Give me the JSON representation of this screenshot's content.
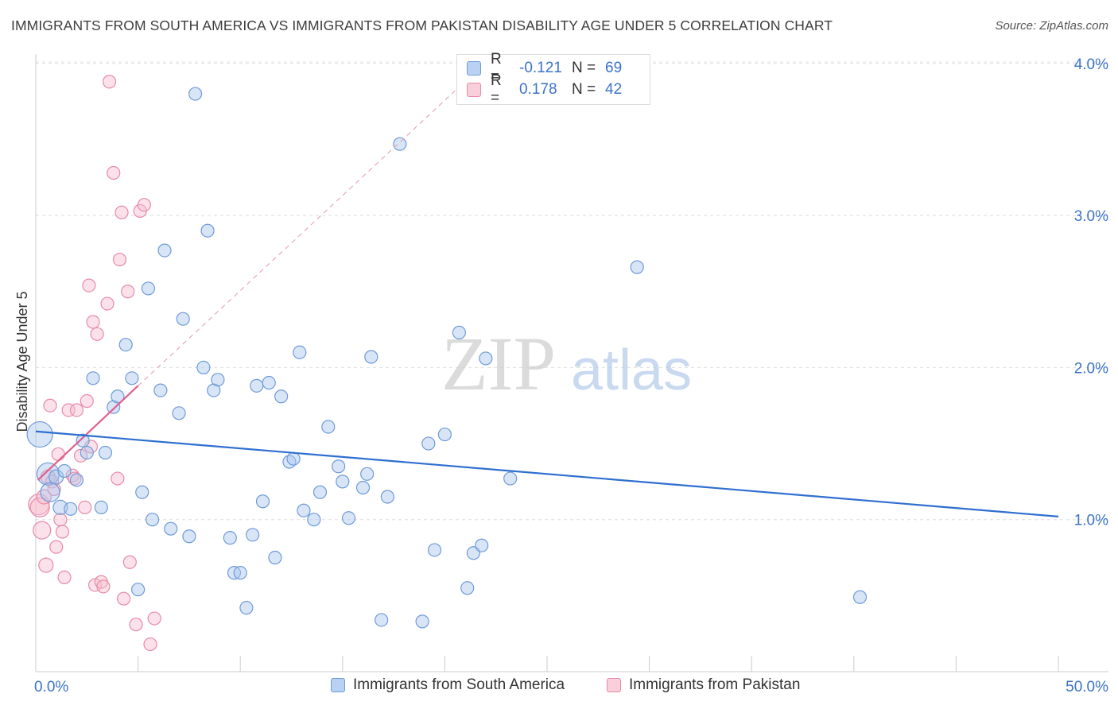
{
  "header": {
    "title": "IMMIGRANTS FROM SOUTH AMERICA VS IMMIGRANTS FROM PAKISTAN DISABILITY AGE UNDER 5 CORRELATION CHART",
    "source": "Source: ZipAtlas.com"
  },
  "watermark": {
    "zip": "ZIP",
    "atlas": "atlas"
  },
  "legend": {
    "r_label": "R =",
    "n_label": "N =",
    "rows": [
      {
        "r": "-0.121",
        "n": "69"
      },
      {
        "r": "0.178",
        "n": "42"
      }
    ]
  },
  "bottom_legend": {
    "series_a": "Immigrants from South America",
    "series_b": "Immigrants from Pakistan"
  },
  "colors": {
    "blue_fill": "#a9c6ee",
    "blue_stroke": "#6f9bd8",
    "blue_line": "#2f6fd0",
    "pink_fill": "#f6bfd0",
    "pink_stroke": "#e88aa8",
    "pink_line": "#e0608e",
    "axis_text": "#3b73c9"
  },
  "chart_data": {
    "type": "scatter",
    "title": "IMMIGRANTS FROM SOUTH AMERICA VS IMMIGRANTS FROM PAKISTAN DISABILITY AGE UNDER 5 CORRELATION CHART",
    "xlabel": "",
    "ylabel": "Disability Age Under 5",
    "xlim": [
      0,
      50
    ],
    "ylim": [
      0,
      4.2
    ],
    "x_tick_labels": [
      "0.0%",
      "50.0%"
    ],
    "y_ticks": [
      1.0,
      2.0,
      3.0,
      4.0
    ],
    "y_tick_labels": [
      "1.0%",
      "2.0%",
      "3.0%",
      "4.0%"
    ],
    "grid": true,
    "legend_position": "top-center",
    "series": [
      {
        "name": "Immigrants from South America",
        "R": -0.121,
        "N": 69,
        "trend": {
          "x": [
            0,
            50
          ],
          "y": [
            1.58,
            1.02
          ]
        },
        "points": [
          [
            0.2,
            1.56,
            16
          ],
          [
            0.6,
            1.3,
            14
          ],
          [
            0.7,
            1.18,
            12
          ],
          [
            1.0,
            1.28,
            9
          ],
          [
            1.2,
            1.08,
            9
          ],
          [
            1.4,
            1.32,
            8
          ],
          [
            1.7,
            1.07,
            8
          ],
          [
            2.0,
            1.26,
            8
          ],
          [
            2.3,
            1.52,
            8
          ],
          [
            2.5,
            1.44,
            8
          ],
          [
            2.8,
            1.93,
            8
          ],
          [
            3.2,
            1.08,
            8
          ],
          [
            3.4,
            1.44,
            8
          ],
          [
            3.8,
            1.74,
            8
          ],
          [
            4.0,
            1.81,
            8
          ],
          [
            4.4,
            2.15,
            8
          ],
          [
            4.7,
            1.93,
            8
          ],
          [
            5.0,
            0.54,
            8
          ],
          [
            5.2,
            1.18,
            8
          ],
          [
            5.5,
            2.52,
            8
          ],
          [
            5.7,
            1.0,
            8
          ],
          [
            6.1,
            1.85,
            8
          ],
          [
            6.3,
            2.77,
            8
          ],
          [
            6.6,
            0.94,
            8
          ],
          [
            7.0,
            1.7,
            8
          ],
          [
            7.2,
            2.32,
            8
          ],
          [
            7.5,
            0.89,
            8
          ],
          [
            7.8,
            3.8,
            8
          ],
          [
            8.2,
            2.0,
            8
          ],
          [
            8.4,
            2.9,
            8
          ],
          [
            8.7,
            1.85,
            8
          ],
          [
            8.9,
            1.92,
            8
          ],
          [
            9.5,
            0.88,
            8
          ],
          [
            9.7,
            0.65,
            8
          ],
          [
            10.0,
            0.65,
            8
          ],
          [
            10.3,
            0.42,
            8
          ],
          [
            10.6,
            0.9,
            8
          ],
          [
            10.8,
            1.88,
            8
          ],
          [
            11.1,
            1.12,
            8
          ],
          [
            11.4,
            1.9,
            8
          ],
          [
            11.7,
            0.75,
            8
          ],
          [
            12.0,
            1.81,
            8
          ],
          [
            12.4,
            1.38,
            8
          ],
          [
            12.6,
            1.4,
            8
          ],
          [
            12.9,
            2.1,
            8
          ],
          [
            13.1,
            1.06,
            8
          ],
          [
            13.6,
            1.0,
            8
          ],
          [
            13.9,
            1.18,
            8
          ],
          [
            14.3,
            1.61,
            8
          ],
          [
            14.8,
            1.35,
            8
          ],
          [
            15.0,
            1.25,
            8
          ],
          [
            15.3,
            1.01,
            8
          ],
          [
            16.0,
            1.21,
            8
          ],
          [
            16.2,
            1.3,
            8
          ],
          [
            16.4,
            2.07,
            8
          ],
          [
            16.9,
            0.34,
            8
          ],
          [
            17.2,
            1.15,
            8
          ],
          [
            17.8,
            3.47,
            8
          ],
          [
            18.9,
            0.33,
            8
          ],
          [
            19.2,
            1.5,
            8
          ],
          [
            19.5,
            0.8,
            8
          ],
          [
            20.0,
            1.56,
            8
          ],
          [
            20.7,
            2.23,
            8
          ],
          [
            21.1,
            0.55,
            8
          ],
          [
            21.4,
            0.78,
            8
          ],
          [
            21.8,
            0.83,
            8
          ],
          [
            22.0,
            2.06,
            8
          ],
          [
            23.2,
            1.27,
            8
          ],
          [
            29.4,
            2.66,
            8
          ],
          [
            40.3,
            0.49,
            8
          ]
        ]
      },
      {
        "name": "Immigrants from Pakistan",
        "R": 0.178,
        "N": 42,
        "trend": {
          "x": [
            0.1,
            5.0
          ],
          "y": [
            1.26,
            1.88
          ]
        },
        "trend_extension": {
          "x": [
            5.0,
            20.5
          ],
          "y": [
            1.88,
            3.82
          ]
        },
        "points": [
          [
            0.15,
            1.1,
            13
          ],
          [
            0.2,
            1.08,
            12
          ],
          [
            0.3,
            0.93,
            11
          ],
          [
            0.4,
            1.15,
            9
          ],
          [
            0.5,
            0.7,
            9
          ],
          [
            0.6,
            1.28,
            9
          ],
          [
            0.7,
            1.75,
            8
          ],
          [
            0.8,
            1.25,
            8
          ],
          [
            0.9,
            1.2,
            8
          ],
          [
            1.0,
            0.82,
            8
          ],
          [
            1.1,
            1.43,
            8
          ],
          [
            1.2,
            1.0,
            8
          ],
          [
            1.3,
            0.92,
            8
          ],
          [
            1.4,
            0.62,
            8
          ],
          [
            1.6,
            1.72,
            8
          ],
          [
            1.8,
            1.29,
            8
          ],
          [
            1.9,
            1.27,
            8
          ],
          [
            2.0,
            1.72,
            8
          ],
          [
            2.2,
            1.42,
            8
          ],
          [
            2.4,
            1.08,
            8
          ],
          [
            2.5,
            1.78,
            8
          ],
          [
            2.6,
            2.54,
            8
          ],
          [
            2.7,
            1.48,
            8
          ],
          [
            2.8,
            2.3,
            8
          ],
          [
            2.9,
            0.57,
            8
          ],
          [
            3.0,
            2.22,
            8
          ],
          [
            3.2,
            0.59,
            8
          ],
          [
            3.3,
            0.56,
            8
          ],
          [
            3.5,
            2.42,
            8
          ],
          [
            3.6,
            3.88,
            8
          ],
          [
            3.8,
            3.28,
            8
          ],
          [
            4.0,
            1.27,
            8
          ],
          [
            4.1,
            2.71,
            8
          ],
          [
            4.2,
            3.02,
            8
          ],
          [
            4.3,
            0.48,
            8
          ],
          [
            4.5,
            2.5,
            8
          ],
          [
            4.6,
            0.72,
            8
          ],
          [
            4.9,
            0.31,
            8
          ],
          [
            5.1,
            3.03,
            8
          ],
          [
            5.3,
            3.07,
            8
          ],
          [
            5.6,
            0.18,
            8
          ],
          [
            5.8,
            0.35,
            8
          ]
        ]
      }
    ]
  }
}
